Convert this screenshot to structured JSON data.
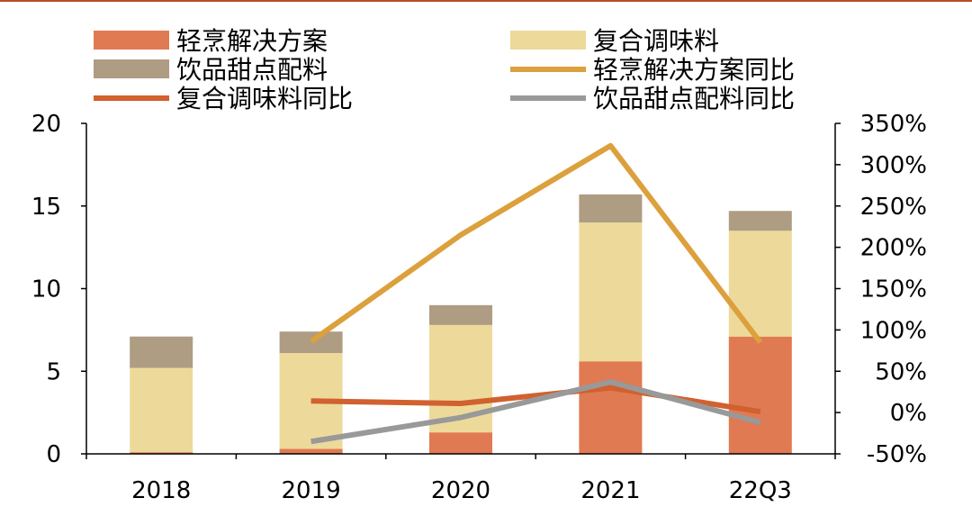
{
  "chart_data": {
    "type": "bar",
    "categories": [
      "2018",
      "2019",
      "2020",
      "2021",
      "22Q3"
    ],
    "series": [
      {
        "name": "轻烹解决方案",
        "kind": "bar",
        "axis": "left",
        "color": "#E07A52",
        "values": [
          0.1,
          0.3,
          1.3,
          5.6,
          7.1
        ]
      },
      {
        "name": "复合调味料",
        "kind": "bar",
        "axis": "left",
        "color": "#EDDA9A",
        "values": [
          5.1,
          5.8,
          6.5,
          8.4,
          6.4
        ]
      },
      {
        "name": "饮品甜点配料",
        "kind": "bar",
        "axis": "left",
        "color": "#AE9C83",
        "values": [
          1.9,
          1.3,
          1.2,
          1.7,
          1.2
        ]
      },
      {
        "name": "轻烹解决方案同比",
        "kind": "line",
        "axis": "right",
        "color": "#DCA03C",
        "values": [
          null,
          86,
          215,
          323,
          85
        ]
      },
      {
        "name": "复合调味料同比",
        "kind": "line",
        "axis": "right",
        "color": "#D1612F",
        "values": [
          null,
          14,
          11,
          30,
          1
        ]
      },
      {
        "name": "饮品甜点配料同比",
        "kind": "line",
        "axis": "right",
        "color": "#999999",
        "values": [
          null,
          -35,
          -6,
          37,
          -12
        ]
      }
    ],
    "y_left": {
      "min": 0,
      "max": 20,
      "ticks": [
        "0",
        "5",
        "10",
        "15",
        "20"
      ]
    },
    "y_right": {
      "min": -50,
      "max": 350,
      "ticks": [
        "-50%",
        "0%",
        "50%",
        "100%",
        "150%",
        "200%",
        "250%",
        "300%",
        "350%"
      ]
    },
    "legend_position": "top",
    "top_rule_color": "#B5502A"
  }
}
